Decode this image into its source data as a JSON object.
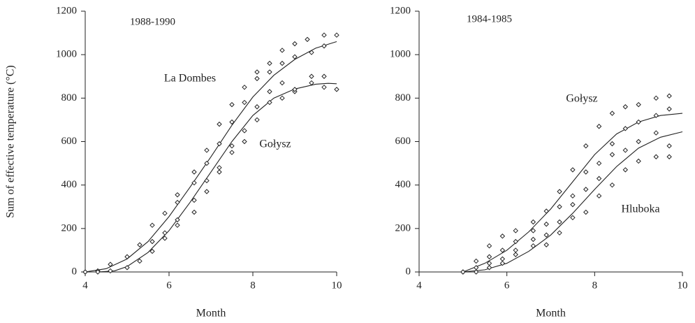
{
  "chart_data": [
    {
      "type": "scatter",
      "title": "1988-1990",
      "ylabel": "Sum of effective temperature (°C)",
      "xlabel": "Month",
      "xlim": [
        4,
        10
      ],
      "xticks": [
        4,
        6,
        8,
        10
      ],
      "ylim": [
        0,
        1200
      ],
      "yticks": [
        0,
        200,
        400,
        600,
        800,
        1000,
        1200
      ],
      "series": [
        {
          "name": "La Dombes",
          "color": "#222222",
          "x": [
            4,
            4.3,
            4.6,
            5,
            5.3,
            5.6,
            5.9,
            6.2,
            6.6,
            6.9,
            7.2,
            7.5,
            7.8,
            8.1,
            8.4,
            8.7,
            9,
            9.3,
            9.7,
            10,
            6.2,
            6.6,
            6.9,
            7.2,
            7.5,
            7.8,
            8.1,
            8.4,
            8.7,
            9,
            9.4,
            9.7
          ],
          "values": [
            0,
            5,
            35,
            70,
            125,
            215,
            270,
            355,
            460,
            560,
            680,
            770,
            850,
            920,
            960,
            1020,
            1050,
            1070,
            1090,
            1090,
            320,
            410,
            500,
            590,
            690,
            780,
            890,
            920,
            960,
            990,
            1010,
            1040
          ],
          "fit": {
            "x": [
              4,
              4.5,
              5,
              5.5,
              6,
              6.5,
              7,
              7.5,
              8,
              8.5,
              9,
              9.5,
              10
            ],
            "values": [
              0,
              15,
              60,
              140,
              255,
              390,
              530,
              675,
              805,
              905,
              978,
              1030,
              1060
            ]
          }
        },
        {
          "name": "Gołysz",
          "color": "#222222",
          "x": [
            4,
            4.3,
            4.6,
            5,
            5.3,
            5.6,
            5.9,
            6.2,
            6.6,
            6.9,
            7.2,
            7.5,
            7.8,
            8.1,
            8.4,
            8.7,
            9,
            9.4,
            9.7,
            10,
            5.6,
            5.9,
            6.2,
            6.6,
            6.9,
            7.2,
            7.5,
            7.8,
            8.1,
            8.4,
            8.7,
            9,
            9.4,
            9.7
          ],
          "values": [
            0,
            0,
            5,
            20,
            50,
            140,
            180,
            240,
            330,
            420,
            480,
            580,
            650,
            760,
            830,
            870,
            830,
            900,
            900,
            840,
            95,
            155,
            215,
            275,
            370,
            460,
            550,
            600,
            700,
            780,
            800,
            840,
            870,
            850
          ],
          "fit": {
            "x": [
              4,
              4.3,
              4.7,
              5,
              5.5,
              6,
              6.5,
              7,
              7.5,
              8,
              8.5,
              9,
              9.5,
              9.8,
              10
            ],
            "values": [
              0,
              0,
              5,
              25,
              90,
              190,
              320,
              460,
              600,
              720,
              800,
              842,
              864,
              868,
              866
            ]
          }
        }
      ]
    },
    {
      "type": "scatter",
      "title": "1984-1985",
      "xlabel": "Month",
      "xlim": [
        4,
        10
      ],
      "xticks": [
        4,
        6,
        8,
        10
      ],
      "ylim": [
        0,
        1200
      ],
      "yticks": [
        0,
        200,
        400,
        600,
        800,
        1000,
        1200
      ],
      "series": [
        {
          "name": "Gołysz",
          "color": "#222222",
          "x": [
            5,
            5.3,
            5.6,
            5.9,
            6.2,
            6.6,
            6.9,
            7.2,
            7.5,
            7.8,
            8.1,
            8.4,
            8.7,
            9,
            9.4,
            9.7,
            9.7,
            9.4,
            9,
            8.7,
            8.4,
            8.1,
            7.8,
            7.5,
            7.2,
            6.9,
            6.6,
            6.2,
            5.9,
            5.6,
            5.3
          ],
          "values": [
            0,
            50,
            120,
            165,
            190,
            230,
            280,
            370,
            470,
            580,
            670,
            730,
            760,
            770,
            800,
            810,
            750,
            720,
            690,
            660,
            590,
            500,
            460,
            350,
            300,
            220,
            190,
            140,
            100,
            70,
            20
          ],
          "fit": {
            "x": [
              5,
              5.5,
              6,
              6.5,
              7,
              7.5,
              8,
              8.5,
              9,
              9.5,
              10
            ],
            "values": [
              0,
              40,
              100,
              185,
              290,
              415,
              540,
              635,
              690,
              720,
              730
            ]
          }
        },
        {
          "name": "Hluboka",
          "color": "#222222",
          "x": [
            5,
            5.3,
            5.6,
            5.9,
            6.2,
            6.6,
            6.9,
            7.2,
            7.5,
            7.8,
            8.1,
            8.4,
            8.7,
            9,
            9.4,
            9.7,
            9.7,
            9.4,
            9,
            8.7,
            8.4,
            8.1,
            7.8,
            7.5,
            7.2,
            6.9,
            6.6,
            6.2,
            5.9,
            5.6
          ],
          "values": [
            0,
            0,
            20,
            40,
            80,
            120,
            125,
            180,
            250,
            275,
            350,
            400,
            470,
            510,
            530,
            530,
            580,
            640,
            600,
            560,
            540,
            430,
            380,
            310,
            230,
            170,
            150,
            100,
            60,
            40
          ],
          "fit": {
            "x": [
              5,
              5.5,
              6,
              6.5,
              7,
              7.5,
              8,
              8.5,
              9,
              9.5,
              10
            ],
            "values": [
              0,
              10,
              40,
              95,
              170,
              270,
              380,
              485,
              570,
              620,
              645
            ]
          }
        }
      ]
    }
  ]
}
